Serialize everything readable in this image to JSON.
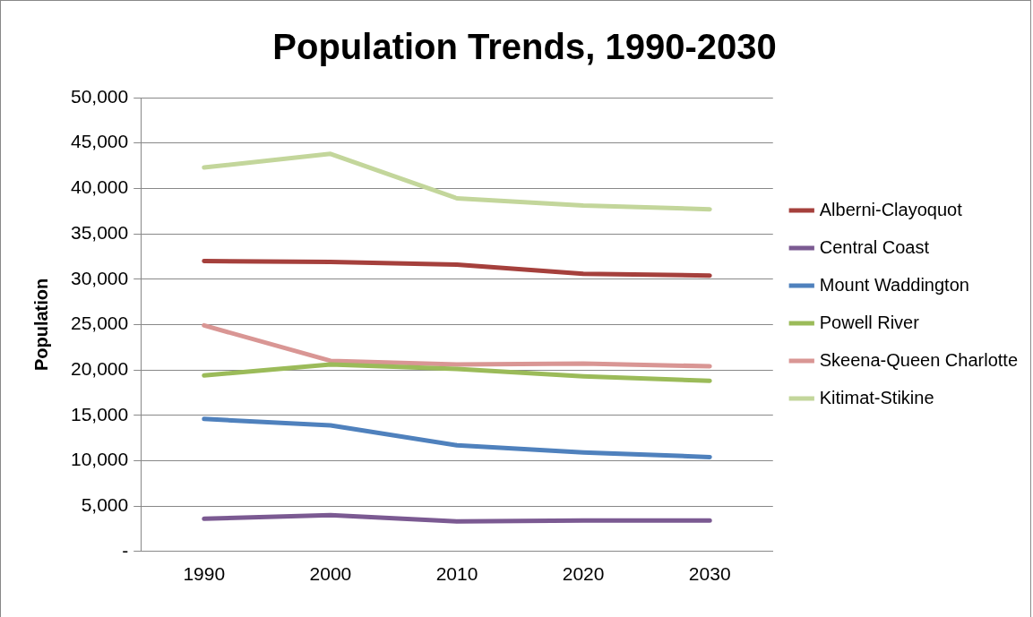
{
  "chart_data": {
    "type": "line",
    "title": "Population Trends, 1990-2030",
    "ylabel": "Population",
    "categories": [
      "1990",
      "2000",
      "2010",
      "2020",
      "2030"
    ],
    "series": [
      {
        "name": "Alberni-Clayoquot",
        "color": "#a5403c",
        "values": [
          32000,
          31900,
          31600,
          30600,
          30400
        ]
      },
      {
        "name": "Central Coast",
        "color": "#7b5a92",
        "values": [
          3600,
          4000,
          3300,
          3400,
          3400
        ]
      },
      {
        "name": "Mount Waddington",
        "color": "#4f81bd",
        "values": [
          14600,
          13900,
          11700,
          10900,
          10400
        ]
      },
      {
        "name": "Powell River",
        "color": "#9bbb59",
        "values": [
          19400,
          20600,
          20100,
          19300,
          18800
        ]
      },
      {
        "name": "Skeena-Queen Charlotte",
        "color": "#d99694",
        "values": [
          24900,
          21000,
          20600,
          20700,
          20400
        ]
      },
      {
        "name": "Kitimat-Stikine",
        "color": "#c3d69b",
        "values": [
          42300,
          43800,
          38900,
          38100,
          37700
        ]
      }
    ],
    "ylim": [
      0,
      50000
    ],
    "yticks": [
      {
        "value": 0,
        "label": "-"
      },
      {
        "value": 5000,
        "label": "5,000"
      },
      {
        "value": 10000,
        "label": "10,000"
      },
      {
        "value": 15000,
        "label": "15,000"
      },
      {
        "value": 20000,
        "label": "20,000"
      },
      {
        "value": 25000,
        "label": "25,000"
      },
      {
        "value": 30000,
        "label": "30,000"
      },
      {
        "value": 35000,
        "label": "35,000"
      },
      {
        "value": 40000,
        "label": "40,000"
      },
      {
        "value": 45000,
        "label": "45,000"
      },
      {
        "value": 50000,
        "label": "50,000"
      }
    ],
    "grid": "y",
    "legend": "right",
    "marker": "none",
    "line_style": "solid"
  }
}
